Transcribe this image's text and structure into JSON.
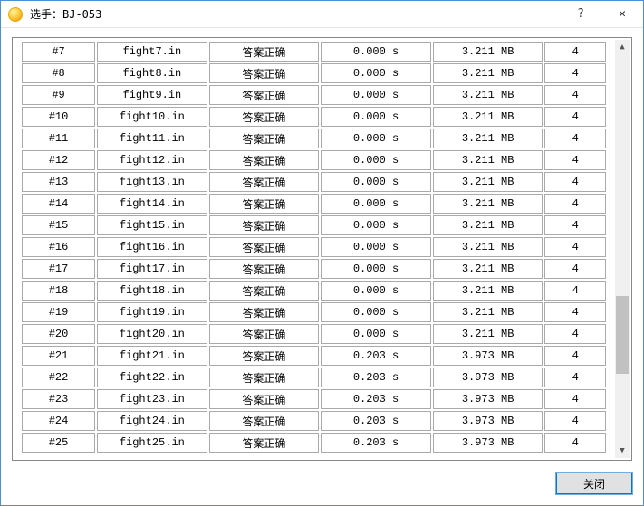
{
  "window": {
    "title": "选手：BJ-053",
    "help_label": "?",
    "close_label": "✕"
  },
  "table": {
    "col_widths_pct": [
      12,
      18,
      18,
      18,
      18,
      10
    ],
    "rows": [
      {
        "num": "#7",
        "file": "fight7.in",
        "status": "答案正确",
        "time": "0.000 s",
        "mem": "3.211 MB",
        "score": "4"
      },
      {
        "num": "#8",
        "file": "fight8.in",
        "status": "答案正确",
        "time": "0.000 s",
        "mem": "3.211 MB",
        "score": "4"
      },
      {
        "num": "#9",
        "file": "fight9.in",
        "status": "答案正确",
        "time": "0.000 s",
        "mem": "3.211 MB",
        "score": "4"
      },
      {
        "num": "#10",
        "file": "fight10.in",
        "status": "答案正确",
        "time": "0.000 s",
        "mem": "3.211 MB",
        "score": "4"
      },
      {
        "num": "#11",
        "file": "fight11.in",
        "status": "答案正确",
        "time": "0.000 s",
        "mem": "3.211 MB",
        "score": "4"
      },
      {
        "num": "#12",
        "file": "fight12.in",
        "status": "答案正确",
        "time": "0.000 s",
        "mem": "3.211 MB",
        "score": "4"
      },
      {
        "num": "#13",
        "file": "fight13.in",
        "status": "答案正确",
        "time": "0.000 s",
        "mem": "3.211 MB",
        "score": "4"
      },
      {
        "num": "#14",
        "file": "fight14.in",
        "status": "答案正确",
        "time": "0.000 s",
        "mem": "3.211 MB",
        "score": "4"
      },
      {
        "num": "#15",
        "file": "fight15.in",
        "status": "答案正确",
        "time": "0.000 s",
        "mem": "3.211 MB",
        "score": "4"
      },
      {
        "num": "#16",
        "file": "fight16.in",
        "status": "答案正确",
        "time": "0.000 s",
        "mem": "3.211 MB",
        "score": "4"
      },
      {
        "num": "#17",
        "file": "fight17.in",
        "status": "答案正确",
        "time": "0.000 s",
        "mem": "3.211 MB",
        "score": "4"
      },
      {
        "num": "#18",
        "file": "fight18.in",
        "status": "答案正确",
        "time": "0.000 s",
        "mem": "3.211 MB",
        "score": "4"
      },
      {
        "num": "#19",
        "file": "fight19.in",
        "status": "答案正确",
        "time": "0.000 s",
        "mem": "3.211 MB",
        "score": "4"
      },
      {
        "num": "#20",
        "file": "fight20.in",
        "status": "答案正确",
        "time": "0.000 s",
        "mem": "3.211 MB",
        "score": "4"
      },
      {
        "num": "#21",
        "file": "fight21.in",
        "status": "答案正确",
        "time": "0.203 s",
        "mem": "3.973 MB",
        "score": "4"
      },
      {
        "num": "#22",
        "file": "fight22.in",
        "status": "答案正确",
        "time": "0.203 s",
        "mem": "3.973 MB",
        "score": "4"
      },
      {
        "num": "#23",
        "file": "fight23.in",
        "status": "答案正确",
        "time": "0.203 s",
        "mem": "3.973 MB",
        "score": "4"
      },
      {
        "num": "#24",
        "file": "fight24.in",
        "status": "答案正确",
        "time": "0.203 s",
        "mem": "3.973 MB",
        "score": "4"
      },
      {
        "num": "#25",
        "file": "fight25.in",
        "status": "答案正确",
        "time": "0.203 s",
        "mem": "3.973 MB",
        "score": "4"
      }
    ]
  },
  "footer": {
    "close_button_label": "关闭"
  }
}
